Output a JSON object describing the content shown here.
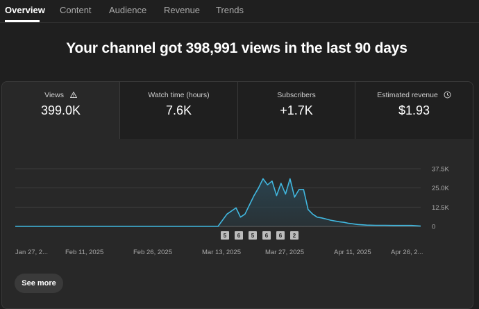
{
  "tabs": [
    {
      "label": "Overview",
      "active": true
    },
    {
      "label": "Content",
      "active": false
    },
    {
      "label": "Audience",
      "active": false
    },
    {
      "label": "Revenue",
      "active": false
    },
    {
      "label": "Trends",
      "active": false
    }
  ],
  "headline": "Your channel got 398,991 views in the last 90 days",
  "metrics": [
    {
      "label": "Views",
      "value": "399.0K",
      "icon": "warning-icon"
    },
    {
      "label": "Watch time (hours)",
      "value": "7.6K"
    },
    {
      "label": "Subscribers",
      "value": "+1.7K"
    },
    {
      "label": "Estimated revenue",
      "value": "$1.93",
      "icon": "clock-icon"
    }
  ],
  "see_more_label": "See more",
  "colors": {
    "line": "#41b8e0",
    "fill": "#2a4450"
  },
  "chart_data": {
    "type": "area",
    "y_ticks": [
      "37.5K",
      "25.0K",
      "12.5K",
      "0"
    ],
    "y_tick_values": [
      37500,
      25000,
      12500,
      0
    ],
    "ylim": [
      0,
      37500
    ],
    "x_labels": [
      "Jan 27, 2...",
      "Feb 11, 2025",
      "Feb 26, 2025",
      "Mar 13, 2025",
      "Mar 27, 2025",
      "Apr 11, 2025",
      "Apr 26, 2..."
    ],
    "markers": [
      "5",
      "6",
      "5",
      "6",
      "6",
      "2"
    ],
    "x": [
      "Jan 27",
      "Feb 11",
      "Feb 26",
      "Mar 13",
      "Mar 15",
      "Mar 17",
      "Mar 18",
      "Mar 19",
      "Mar 20",
      "Mar 21",
      "Mar 22",
      "Mar 23",
      "Mar 24",
      "Mar 25",
      "Mar 26",
      "Mar 27",
      "Mar 28",
      "Mar 29",
      "Mar 30",
      "Mar 31",
      "Apr 1",
      "Apr 2",
      "Apr 3",
      "Apr 4",
      "Apr 5",
      "Apr 6",
      "Apr 7",
      "Apr 8",
      "Apr 9",
      "Apr 10",
      "Apr 11",
      "Apr 13",
      "Apr 15",
      "Apr 17",
      "Apr 19",
      "Apr 21",
      "Apr 23",
      "Apr 25",
      "Apr 27"
    ],
    "values": [
      0,
      0,
      0,
      0,
      8000,
      12000,
      6000,
      8000,
      14000,
      20000,
      25000,
      31000,
      27000,
      29500,
      20000,
      28000,
      21000,
      31000,
      19000,
      24000,
      24000,
      11000,
      8000,
      6000,
      5500,
      4800,
      4000,
      3500,
      3000,
      2600,
      2000,
      1200,
      800,
      700,
      700,
      600,
      600,
      600,
      200
    ]
  }
}
